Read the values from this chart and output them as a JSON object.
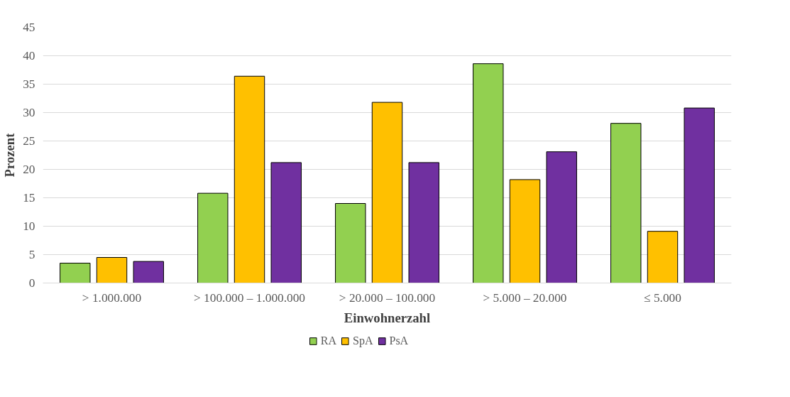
{
  "chart_data": {
    "type": "bar",
    "xlabel": "Einwohnerzahl",
    "ylabel": "Prozent",
    "categories": [
      "> 1.000.000",
      "> 100.000 – 1.000.000",
      "> 20.000 – 100.000",
      "> 5.000 – 20.000",
      "≤ 5.000"
    ],
    "series": [
      {
        "name": "RA",
        "color": "#92d050",
        "values": [
          3.5,
          15.8,
          14.0,
          38.6,
          28.1
        ]
      },
      {
        "name": "SpA",
        "color": "#ffc000",
        "values": [
          4.5,
          36.4,
          31.8,
          18.2,
          9.1
        ]
      },
      {
        "name": "PsA",
        "color": "#7030a0",
        "values": [
          3.8,
          21.2,
          21.2,
          23.1,
          30.8
        ]
      }
    ],
    "ylim": [
      0,
      45
    ],
    "yticks": [
      0,
      5,
      10,
      15,
      20,
      25,
      30,
      35,
      40,
      45
    ],
    "grid": "y",
    "legend": "bottom"
  }
}
